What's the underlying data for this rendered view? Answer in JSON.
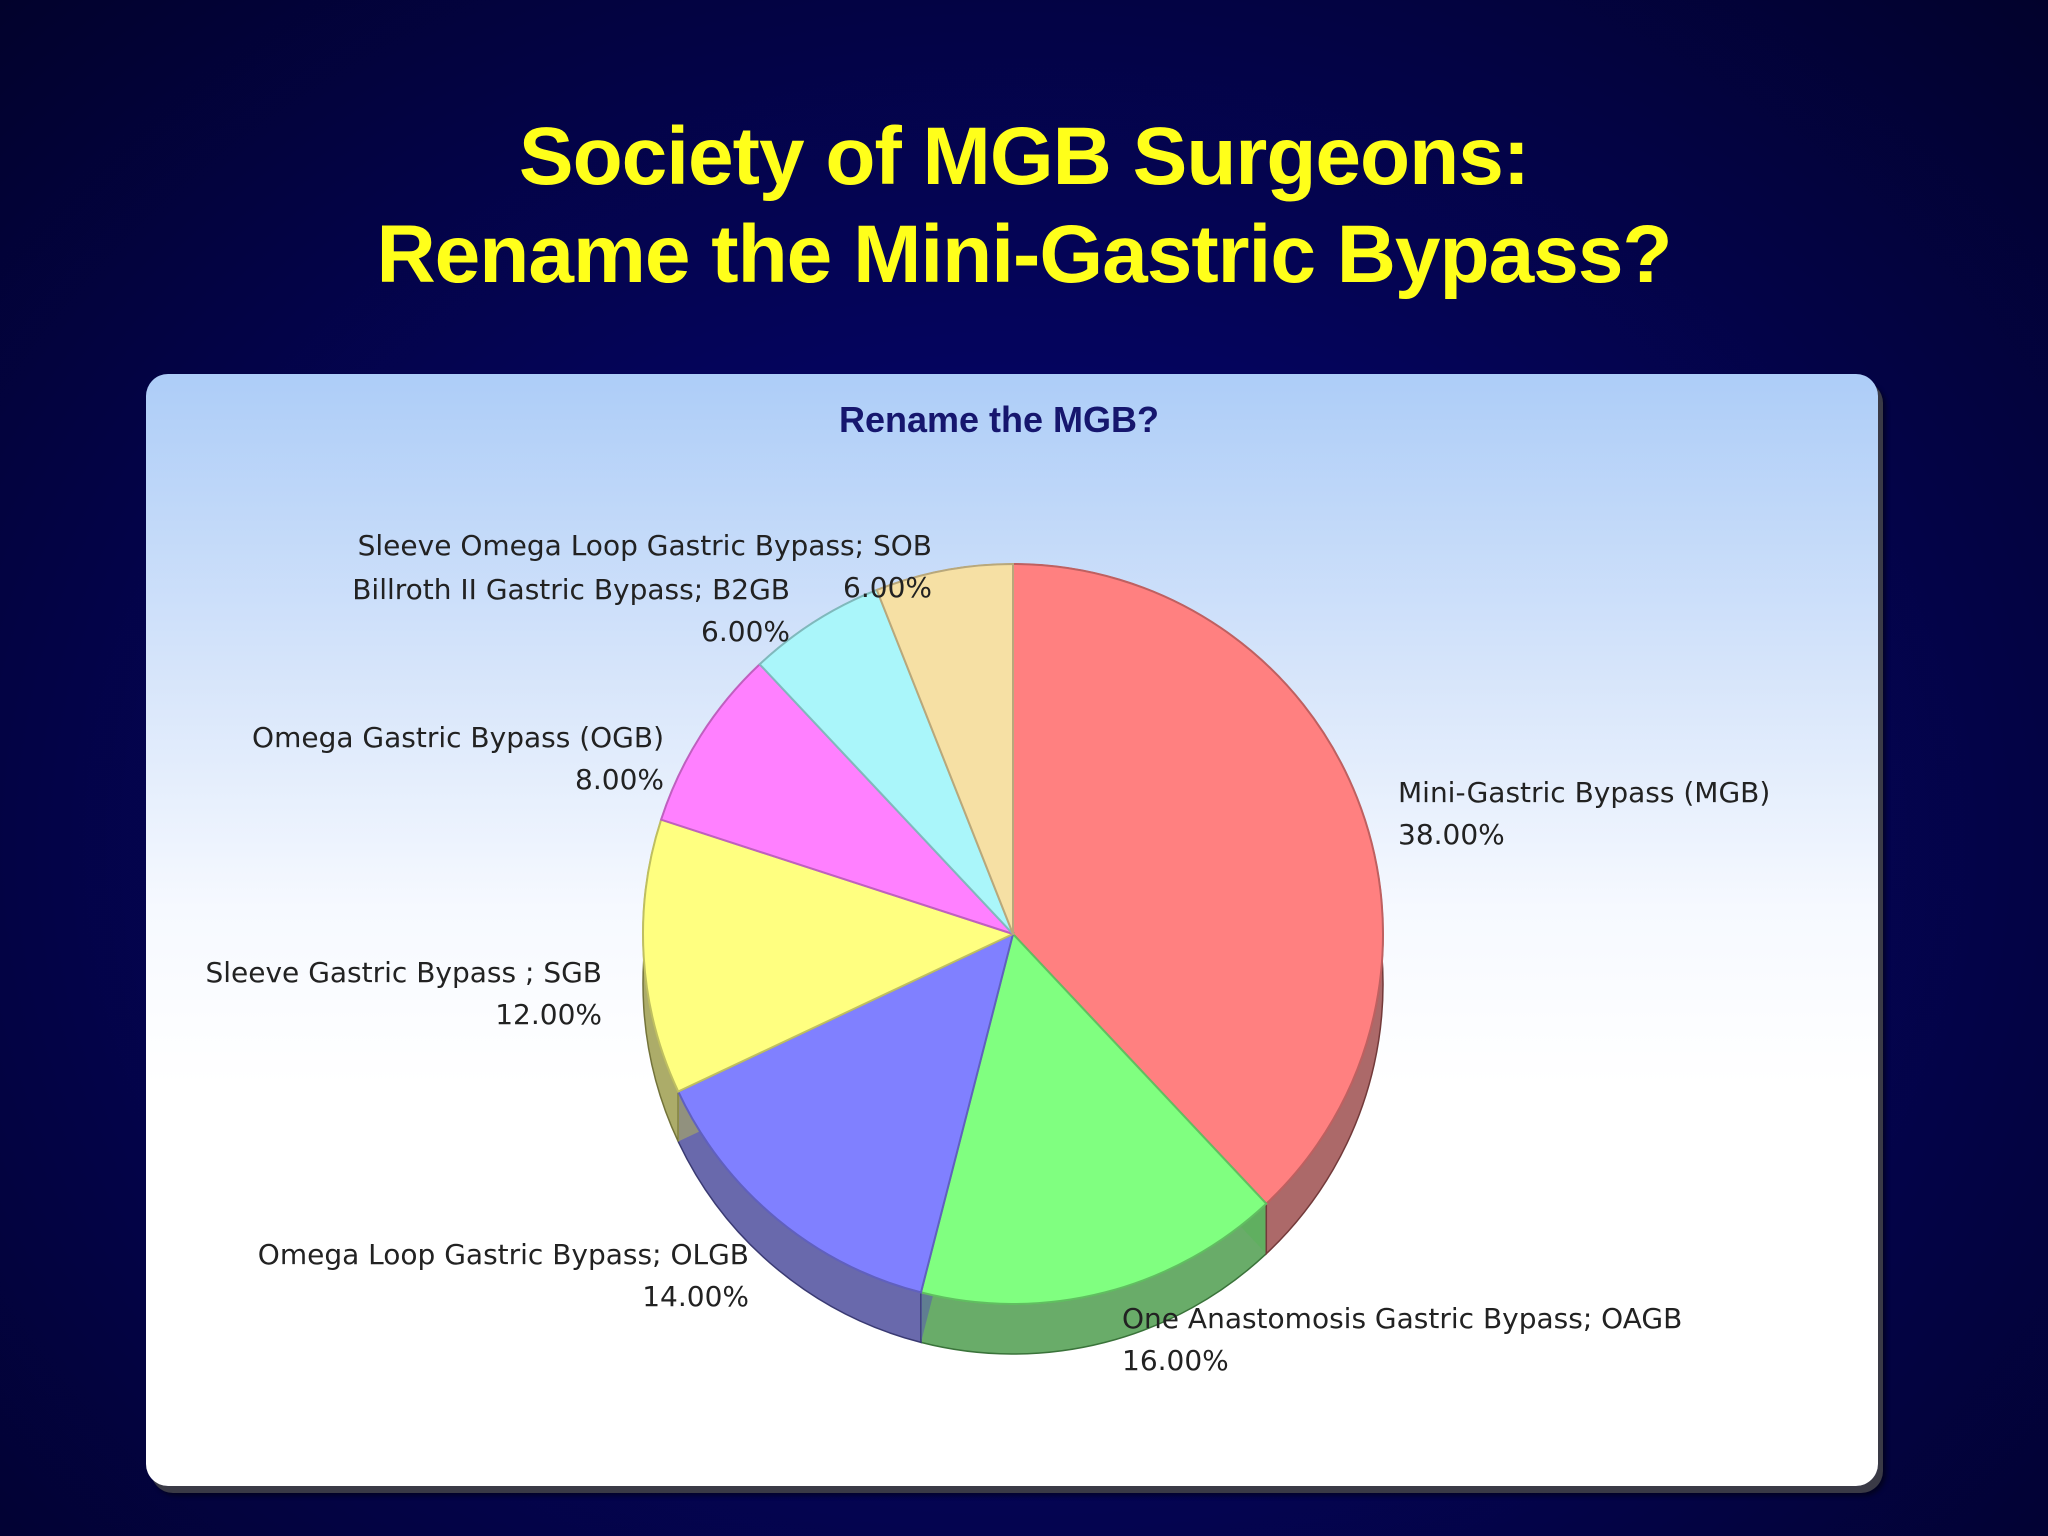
{
  "slide": {
    "title_line1": "Society of MGB Surgeons:",
    "title_line2": "Rename the Mini-Gastric Bypass?"
  },
  "chart_data": {
    "type": "pie",
    "title": "Rename the MGB?",
    "slices": [
      {
        "label": "Mini-Gastric Bypass (MGB)",
        "value": 38,
        "value_text": "38.00%",
        "color": "#ff8080"
      },
      {
        "label": "One Anastomosis Gastric Bypass; OAGB",
        "value": 16,
        "value_text": "16.00%",
        "color": "#80ff80"
      },
      {
        "label": "Omega Loop Gastric Bypass; OLGB",
        "value": 14,
        "value_text": "14.00%",
        "color": "#8080ff"
      },
      {
        "label": "Sleeve Gastric Bypass ; SGB",
        "value": 12,
        "value_text": "12.00%",
        "color": "#ffff80"
      },
      {
        "label": "Omega Gastric Bypass (OGB)",
        "value": 8,
        "value_text": "8.00%",
        "color": "#ff80ff"
      },
      {
        "label": "Billroth II Gastric Bypass; B2GB",
        "value": 6,
        "value_text": "6.00%",
        "color": "#aaf6fa"
      },
      {
        "label": "Sleeve Omega Loop Gastric Bypass; SOB",
        "value": 6,
        "value_text": "6.00%",
        "color": "#f6e0a4"
      }
    ],
    "legend": "none"
  }
}
